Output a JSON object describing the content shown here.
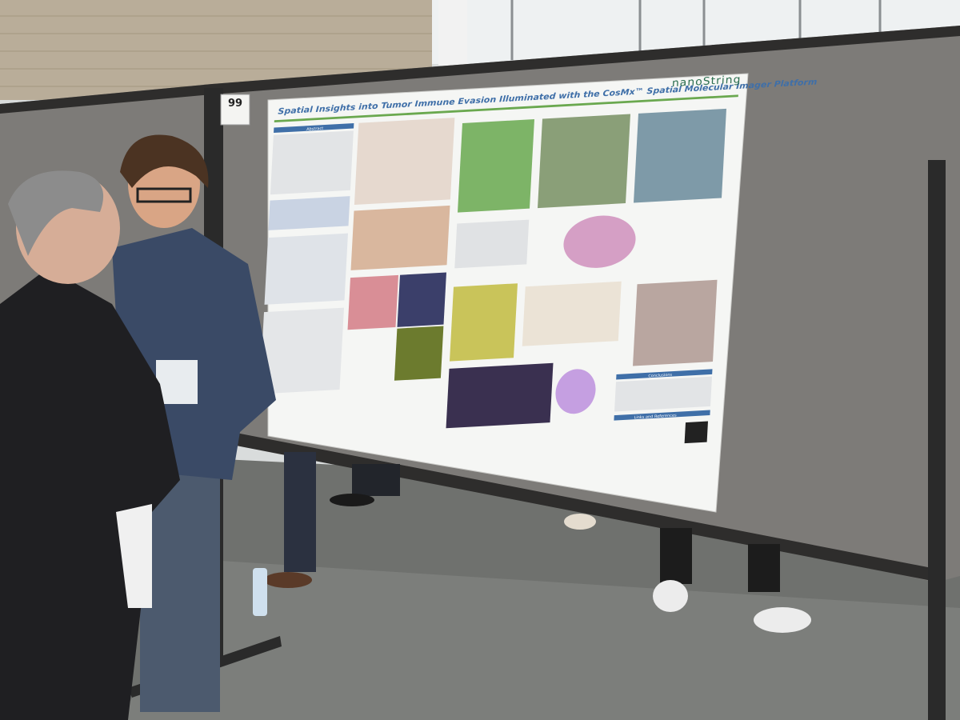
{
  "poster": {
    "board_number": "99",
    "title": "Spatial Insights into Tumor Immune Evasion Illuminated with the CosMx™ Spatial Molecular Imager Platform",
    "logo": "nanoString",
    "sections": [
      "Abstract",
      "Conclusions",
      "Links and References"
    ]
  }
}
